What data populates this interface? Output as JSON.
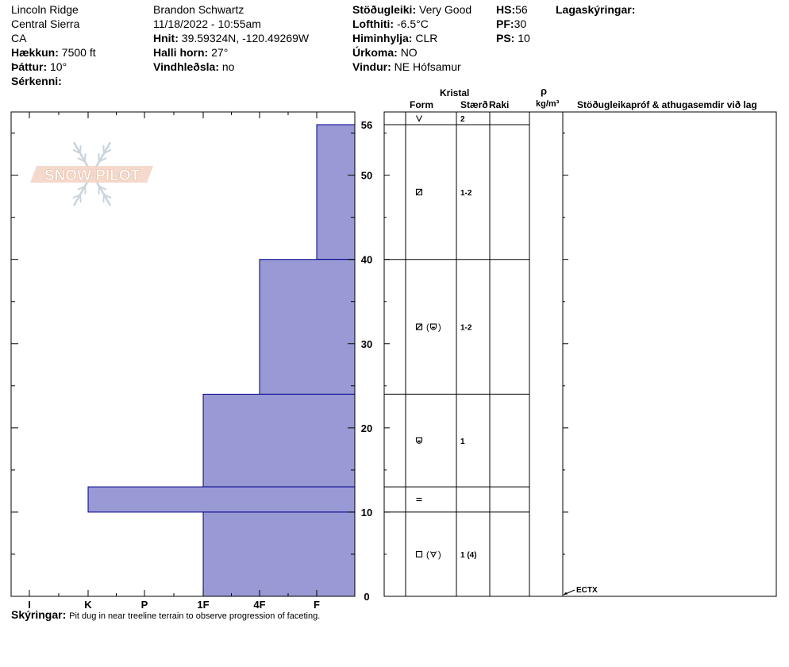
{
  "header": {
    "col1": {
      "location": "Lincoln Ridge",
      "range": "Central Sierra",
      "state": "CA",
      "elevation_label": "Hækkun:",
      "elevation": "7500 ft",
      "aspect_label": "Þáttur:",
      "aspect": "10°",
      "features_label": "Sérkenni:"
    },
    "col2": {
      "observer": "Brandon Schwartz",
      "datetime": "11/18/2022 - 10:55am",
      "coords_label": "Hnit:",
      "coords": "39.59324N, -120.49269W",
      "slope_label": "Halli horn:",
      "slope": "27°",
      "wind_loading_label": "Vindhleðsla:",
      "wind_loading": "no"
    },
    "col3": {
      "stability_label": "Stöðugleiki:",
      "stability": "Very Good",
      "air_temp_label": "Lofthiti:",
      "air_temp": "-6.5°C",
      "sky_label": "Himinhylja:",
      "sky": "CLR",
      "precip_label": "Úrkoma:",
      "precip": "NO",
      "wind_label": "Vindur:",
      "wind": "NE Hófsamur"
    },
    "col4": {
      "hs_label": "HS:",
      "hs": "56",
      "pf_label": "PF:",
      "pf": "30",
      "ps_label": "PS:",
      "ps": "10"
    },
    "layer_notes_label": "Lagaskýringar:"
  },
  "columns": {
    "crystal": "Kristal",
    "form": "Form",
    "size": "Stærð",
    "moisture": "Raki",
    "rho": "ρ",
    "density_unit": "kg/m³",
    "tests": "Stöðugleikapróf & athugasemdir við lag"
  },
  "logo_text": "SNOW PILOT",
  "remarks": {
    "label": "Skýringar:",
    "text": "Pit dug in near treeline terrain to observe progression of faceting."
  },
  "chart_data": {
    "type": "bar",
    "orientation": "horizontal-step",
    "x_categories": [
      "I",
      "K",
      "P",
      "1F",
      "4F",
      "F"
    ],
    "x_hardness_index": [
      1,
      2,
      3,
      4,
      5,
      6
    ],
    "y_ticks": [
      "56",
      "50",
      "40",
      "30",
      "20",
      "10",
      "0"
    ],
    "y_tick_values": [
      56,
      50,
      40,
      30,
      20,
      10,
      0
    ],
    "ylim": [
      0,
      56
    ],
    "bar_color": "#9999d5",
    "bar_edge_color": "#00008b",
    "layers": [
      {
        "top": 56,
        "bottom": 40,
        "hardness": "F",
        "hardness_index": 6,
        "form": "facets",
        "size": "1-2"
      },
      {
        "top": 40,
        "bottom": 24,
        "hardness": "4F",
        "hardness_index": 5,
        "form": "facets (rounding)",
        "size": "1-2"
      },
      {
        "top": 24,
        "bottom": 13,
        "hardness": "1F",
        "hardness_index": 4,
        "form": "rounding facets",
        "size": "1"
      },
      {
        "top": 13,
        "bottom": 10,
        "hardness": "K",
        "hardness_index": 2,
        "form": "crust",
        "size": ""
      },
      {
        "top": 10,
        "bottom": 0,
        "hardness": "1F",
        "hardness_index": 4,
        "form": "facets (depth hoar)",
        "size": "1 (4)"
      }
    ],
    "surface": {
      "form": "surface hoar",
      "size": "2"
    },
    "tests": [
      {
        "label": "ECTX",
        "depth": 0
      }
    ]
  }
}
